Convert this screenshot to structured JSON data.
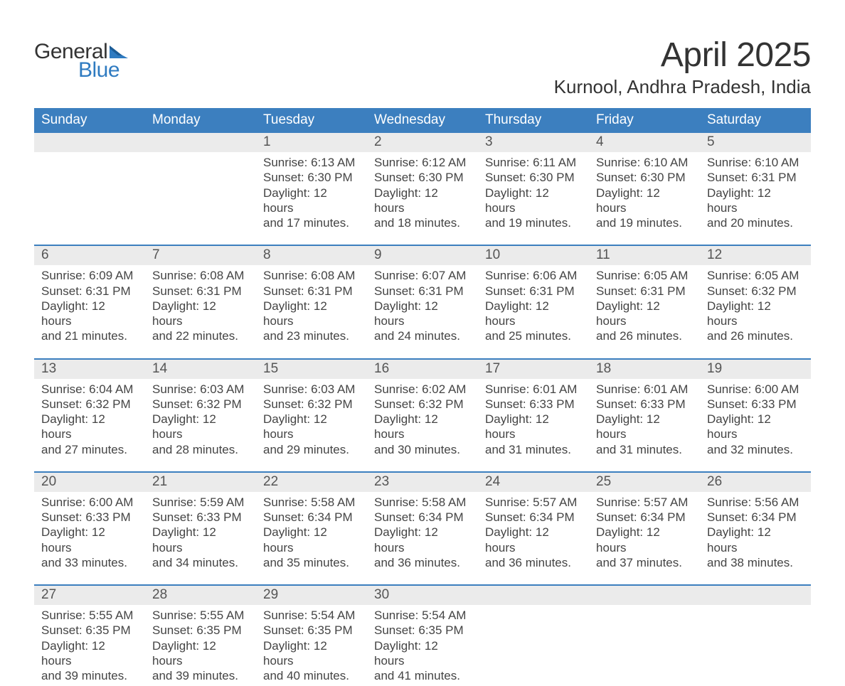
{
  "logo": {
    "text_general": "General",
    "text_blue": "Blue",
    "blue_color": "#2f7bc1",
    "dark_color": "#333333"
  },
  "title": "April 2025",
  "location": "Kurnool, Andhra Pradesh, India",
  "colors": {
    "header_bg": "#3c7fbf",
    "header_text": "#ffffff",
    "daynum_bg": "#ebebeb",
    "week_border": "#3c7fbf",
    "body_text": "#444444",
    "background": "#ffffff"
  },
  "day_headers": [
    "Sunday",
    "Monday",
    "Tuesday",
    "Wednesday",
    "Thursday",
    "Friday",
    "Saturday"
  ],
  "weeks": [
    [
      null,
      null,
      {
        "n": "1",
        "sr": "Sunrise: 6:13 AM",
        "ss": "Sunset: 6:30 PM",
        "dl1": "Daylight: 12 hours",
        "dl2": "and 17 minutes."
      },
      {
        "n": "2",
        "sr": "Sunrise: 6:12 AM",
        "ss": "Sunset: 6:30 PM",
        "dl1": "Daylight: 12 hours",
        "dl2": "and 18 minutes."
      },
      {
        "n": "3",
        "sr": "Sunrise: 6:11 AM",
        "ss": "Sunset: 6:30 PM",
        "dl1": "Daylight: 12 hours",
        "dl2": "and 19 minutes."
      },
      {
        "n": "4",
        "sr": "Sunrise: 6:10 AM",
        "ss": "Sunset: 6:30 PM",
        "dl1": "Daylight: 12 hours",
        "dl2": "and 19 minutes."
      },
      {
        "n": "5",
        "sr": "Sunrise: 6:10 AM",
        "ss": "Sunset: 6:31 PM",
        "dl1": "Daylight: 12 hours",
        "dl2": "and 20 minutes."
      }
    ],
    [
      {
        "n": "6",
        "sr": "Sunrise: 6:09 AM",
        "ss": "Sunset: 6:31 PM",
        "dl1": "Daylight: 12 hours",
        "dl2": "and 21 minutes."
      },
      {
        "n": "7",
        "sr": "Sunrise: 6:08 AM",
        "ss": "Sunset: 6:31 PM",
        "dl1": "Daylight: 12 hours",
        "dl2": "and 22 minutes."
      },
      {
        "n": "8",
        "sr": "Sunrise: 6:08 AM",
        "ss": "Sunset: 6:31 PM",
        "dl1": "Daylight: 12 hours",
        "dl2": "and 23 minutes."
      },
      {
        "n": "9",
        "sr": "Sunrise: 6:07 AM",
        "ss": "Sunset: 6:31 PM",
        "dl1": "Daylight: 12 hours",
        "dl2": "and 24 minutes."
      },
      {
        "n": "10",
        "sr": "Sunrise: 6:06 AM",
        "ss": "Sunset: 6:31 PM",
        "dl1": "Daylight: 12 hours",
        "dl2": "and 25 minutes."
      },
      {
        "n": "11",
        "sr": "Sunrise: 6:05 AM",
        "ss": "Sunset: 6:31 PM",
        "dl1": "Daylight: 12 hours",
        "dl2": "and 26 minutes."
      },
      {
        "n": "12",
        "sr": "Sunrise: 6:05 AM",
        "ss": "Sunset: 6:32 PM",
        "dl1": "Daylight: 12 hours",
        "dl2": "and 26 minutes."
      }
    ],
    [
      {
        "n": "13",
        "sr": "Sunrise: 6:04 AM",
        "ss": "Sunset: 6:32 PM",
        "dl1": "Daylight: 12 hours",
        "dl2": "and 27 minutes."
      },
      {
        "n": "14",
        "sr": "Sunrise: 6:03 AM",
        "ss": "Sunset: 6:32 PM",
        "dl1": "Daylight: 12 hours",
        "dl2": "and 28 minutes."
      },
      {
        "n": "15",
        "sr": "Sunrise: 6:03 AM",
        "ss": "Sunset: 6:32 PM",
        "dl1": "Daylight: 12 hours",
        "dl2": "and 29 minutes."
      },
      {
        "n": "16",
        "sr": "Sunrise: 6:02 AM",
        "ss": "Sunset: 6:32 PM",
        "dl1": "Daylight: 12 hours",
        "dl2": "and 30 minutes."
      },
      {
        "n": "17",
        "sr": "Sunrise: 6:01 AM",
        "ss": "Sunset: 6:33 PM",
        "dl1": "Daylight: 12 hours",
        "dl2": "and 31 minutes."
      },
      {
        "n": "18",
        "sr": "Sunrise: 6:01 AM",
        "ss": "Sunset: 6:33 PM",
        "dl1": "Daylight: 12 hours",
        "dl2": "and 31 minutes."
      },
      {
        "n": "19",
        "sr": "Sunrise: 6:00 AM",
        "ss": "Sunset: 6:33 PM",
        "dl1": "Daylight: 12 hours",
        "dl2": "and 32 minutes."
      }
    ],
    [
      {
        "n": "20",
        "sr": "Sunrise: 6:00 AM",
        "ss": "Sunset: 6:33 PM",
        "dl1": "Daylight: 12 hours",
        "dl2": "and 33 minutes."
      },
      {
        "n": "21",
        "sr": "Sunrise: 5:59 AM",
        "ss": "Sunset: 6:33 PM",
        "dl1": "Daylight: 12 hours",
        "dl2": "and 34 minutes."
      },
      {
        "n": "22",
        "sr": "Sunrise: 5:58 AM",
        "ss": "Sunset: 6:34 PM",
        "dl1": "Daylight: 12 hours",
        "dl2": "and 35 minutes."
      },
      {
        "n": "23",
        "sr": "Sunrise: 5:58 AM",
        "ss": "Sunset: 6:34 PM",
        "dl1": "Daylight: 12 hours",
        "dl2": "and 36 minutes."
      },
      {
        "n": "24",
        "sr": "Sunrise: 5:57 AM",
        "ss": "Sunset: 6:34 PM",
        "dl1": "Daylight: 12 hours",
        "dl2": "and 36 minutes."
      },
      {
        "n": "25",
        "sr": "Sunrise: 5:57 AM",
        "ss": "Sunset: 6:34 PM",
        "dl1": "Daylight: 12 hours",
        "dl2": "and 37 minutes."
      },
      {
        "n": "26",
        "sr": "Sunrise: 5:56 AM",
        "ss": "Sunset: 6:34 PM",
        "dl1": "Daylight: 12 hours",
        "dl2": "and 38 minutes."
      }
    ],
    [
      {
        "n": "27",
        "sr": "Sunrise: 5:55 AM",
        "ss": "Sunset: 6:35 PM",
        "dl1": "Daylight: 12 hours",
        "dl2": "and 39 minutes."
      },
      {
        "n": "28",
        "sr": "Sunrise: 5:55 AM",
        "ss": "Sunset: 6:35 PM",
        "dl1": "Daylight: 12 hours",
        "dl2": "and 39 minutes."
      },
      {
        "n": "29",
        "sr": "Sunrise: 5:54 AM",
        "ss": "Sunset: 6:35 PM",
        "dl1": "Daylight: 12 hours",
        "dl2": "and 40 minutes."
      },
      {
        "n": "30",
        "sr": "Sunrise: 5:54 AM",
        "ss": "Sunset: 6:35 PM",
        "dl1": "Daylight: 12 hours",
        "dl2": "and 41 minutes."
      },
      null,
      null,
      null
    ]
  ]
}
